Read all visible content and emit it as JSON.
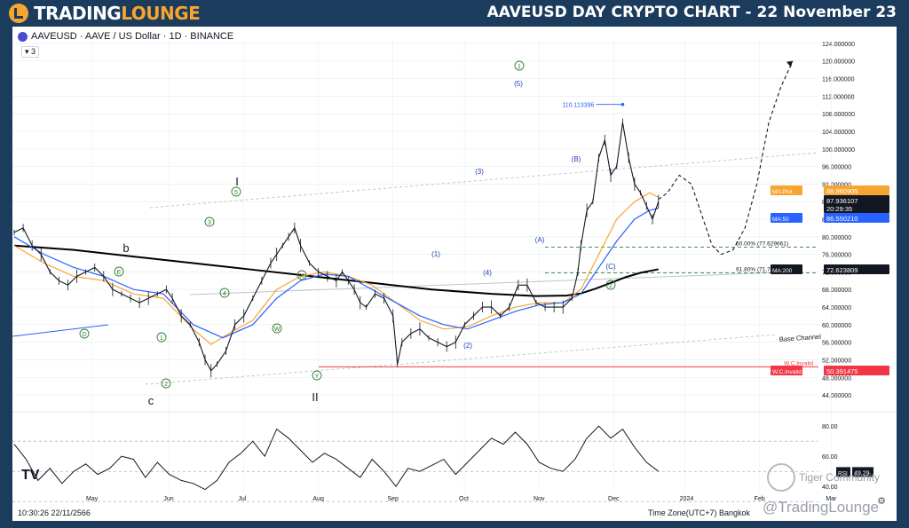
{
  "header": {
    "brand_part1": "TRADING",
    "brand_part2": "LOUNGE",
    "title": "AAVEUSD DAY CRYPTO CHART - 22 November 23"
  },
  "chart_header": {
    "symbol_line": "AAVEUSD · AAVE / US Dollar · 1D · BINANCE",
    "collapsed_count": "3"
  },
  "footer": {
    "datetime": "10:30:26 22/11/2566",
    "timezone": "Time Zone(UTC+7) Bangkok",
    "tv_logo": "TV",
    "community": "Tiger Community",
    "handle": "@TradingLounge"
  },
  "colors": {
    "price": "#131722",
    "ma50": "#2962ff",
    "maplot": "#f7a531",
    "ma200": "#000000",
    "invalid": "#f23645",
    "wave_green": "#2e7d32",
    "wave_blue": "#1e3fae",
    "grid": "#e9ebef",
    "brand_bg": "#1b3c5c",
    "brand_accent": "#f7a531"
  },
  "chart_data": {
    "type": "line",
    "title": "AAVEUSD · AAVE / US Dollar · 1D · BINANCE",
    "x_ticks": [
      "May",
      "Jun",
      "Jul",
      "Aug",
      "Sep",
      "Oct",
      "Nov",
      "Dec",
      "2024",
      "Feb",
      "Mar"
    ],
    "y_ticks": [
      "124.000000",
      "120.000000",
      "116.000000",
      "112.000000",
      "108.000000",
      "104.000000",
      "100.000000",
      "96.000000",
      "92.000000",
      "88.000000",
      "84.000000",
      "80.000000",
      "76.000000",
      "72.000000",
      "68.000000",
      "64.000000",
      "60.000000",
      "56.000000",
      "52.000000",
      "48.000000",
      "44.000000"
    ],
    "ylim": [
      42.8,
      125.2
    ],
    "price_points": [
      [
        0,
        81
      ],
      [
        3,
        82
      ],
      [
        6,
        78
      ],
      [
        9,
        76
      ],
      [
        12,
        72
      ],
      [
        15,
        70
      ],
      [
        18,
        69
      ],
      [
        21,
        71
      ],
      [
        24,
        72
      ],
      [
        27,
        73
      ],
      [
        30,
        71
      ],
      [
        33,
        68
      ],
      [
        36,
        67
      ],
      [
        39,
        66
      ],
      [
        42,
        65
      ],
      [
        45,
        66
      ],
      [
        48,
        67
      ],
      [
        51,
        68
      ],
      [
        53,
        66
      ],
      [
        56,
        62
      ],
      [
        59,
        60
      ],
      [
        62,
        56
      ],
      [
        64,
        52
      ],
      [
        66,
        49.5
      ],
      [
        68,
        51
      ],
      [
        71,
        54
      ],
      [
        74,
        60
      ],
      [
        77,
        62
      ],
      [
        80,
        66
      ],
      [
        83,
        70
      ],
      [
        86,
        74
      ],
      [
        88,
        76
      ],
      [
        90,
        78
      ],
      [
        92,
        80
      ],
      [
        94,
        82
      ],
      [
        96,
        78
      ],
      [
        99,
        74
      ],
      [
        102,
        72
      ],
      [
        105,
        71
      ],
      [
        108,
        70
      ],
      [
        110,
        72
      ],
      [
        112,
        70
      ],
      [
        114,
        68
      ],
      [
        116,
        65
      ],
      [
        118,
        64
      ],
      [
        121,
        67
      ],
      [
        124,
        66
      ],
      [
        127,
        62
      ],
      [
        128.5,
        51
      ],
      [
        130,
        56
      ],
      [
        133,
        58
      ],
      [
        136,
        59
      ],
      [
        139,
        57
      ],
      [
        142,
        56
      ],
      [
        145,
        55
      ],
      [
        148,
        56
      ],
      [
        151,
        60
      ],
      [
        154,
        62
      ],
      [
        157,
        64
      ],
      [
        160,
        64
      ],
      [
        163,
        62
      ],
      [
        166,
        64
      ],
      [
        169,
        69
      ],
      [
        172,
        69
      ],
      [
        175,
        65
      ],
      [
        178,
        64
      ],
      [
        181,
        64
      ],
      [
        184,
        64
      ],
      [
        187,
        66
      ],
      [
        189,
        72
      ],
      [
        190,
        78
      ],
      [
        192,
        86
      ],
      [
        194,
        88
      ],
      [
        196,
        98
      ],
      [
        198,
        102
      ],
      [
        200,
        94
      ],
      [
        202,
        96
      ],
      [
        204,
        106
      ],
      [
        206,
        98
      ],
      [
        208,
        92
      ],
      [
        210,
        90
      ],
      [
        212,
        87
      ],
      [
        214,
        84
      ],
      [
        216,
        88
      ]
    ],
    "ma_plot_points": [
      [
        0,
        78
      ],
      [
        10,
        74
      ],
      [
        20,
        71
      ],
      [
        30,
        70
      ],
      [
        40,
        67
      ],
      [
        50,
        66
      ],
      [
        60,
        59
      ],
      [
        66,
        55.5
      ],
      [
        72,
        58
      ],
      [
        80,
        61
      ],
      [
        88,
        68
      ],
      [
        96,
        71
      ],
      [
        104,
        72
      ],
      [
        112,
        71
      ],
      [
        120,
        69
      ],
      [
        128,
        65
      ],
      [
        136,
        61
      ],
      [
        144,
        59
      ],
      [
        152,
        59.5
      ],
      [
        160,
        62
      ],
      [
        168,
        64
      ],
      [
        176,
        65
      ],
      [
        184,
        65
      ],
      [
        190,
        68
      ],
      [
        196,
        76
      ],
      [
        202,
        84
      ],
      [
        208,
        88
      ],
      [
        213,
        90
      ],
      [
        216,
        89
      ]
    ],
    "ma50_points": [
      [
        0,
        80
      ],
      [
        10,
        76
      ],
      [
        20,
        73
      ],
      [
        30,
        71
      ],
      [
        40,
        68
      ],
      [
        50,
        67
      ],
      [
        60,
        60
      ],
      [
        70,
        57
      ],
      [
        80,
        60
      ],
      [
        88,
        66
      ],
      [
        96,
        70
      ],
      [
        104,
        71.5
      ],
      [
        112,
        71
      ],
      [
        120,
        68
      ],
      [
        128,
        65
      ],
      [
        136,
        62
      ],
      [
        144,
        60
      ],
      [
        152,
        59
      ],
      [
        160,
        61
      ],
      [
        168,
        63
      ],
      [
        176,
        64.5
      ],
      [
        184,
        65
      ],
      [
        190,
        67
      ],
      [
        196,
        73
      ],
      [
        202,
        79
      ],
      [
        208,
        84
      ],
      [
        213,
        86
      ],
      [
        216,
        86.5
      ]
    ],
    "ma200_points": [
      [
        0,
        78
      ],
      [
        20,
        77
      ],
      [
        40,
        75.5
      ],
      [
        60,
        74
      ],
      [
        80,
        72.5
      ],
      [
        100,
        71
      ],
      [
        120,
        69.5
      ],
      [
        140,
        68
      ],
      [
        160,
        67
      ],
      [
        175,
        66.5
      ],
      [
        185,
        66.6
      ],
      [
        190,
        67.1
      ],
      [
        195,
        68.2
      ],
      [
        200,
        69.5
      ],
      [
        205,
        70.8
      ],
      [
        210,
        71.8
      ],
      [
        216,
        72.6
      ]
    ],
    "projection_points": [
      [
        216,
        88.5
      ],
      [
        219,
        90
      ],
      [
        223,
        94
      ],
      [
        227,
        92
      ],
      [
        231,
        84
      ],
      [
        234,
        78
      ],
      [
        237,
        76
      ],
      [
        241,
        77
      ],
      [
        245,
        82
      ],
      [
        249,
        92
      ],
      [
        253,
        106
      ],
      [
        257,
        114
      ],
      [
        261,
        120
      ]
    ],
    "price_labels": [
      {
        "label": "MA:Plot",
        "value": "88.960905"
      },
      {
        "label": "",
        "value": "87.936107"
      },
      {
        "label": "",
        "value": "20:29:35"
      },
      {
        "label": "MA:50",
        "value": "86.550210"
      },
      {
        "label": "MA:200",
        "value": "72.623809"
      },
      {
        "label": "W.C.Invalid",
        "value": "50.391475"
      }
    ],
    "levels": [
      {
        "label": "50.00% (77.629661)",
        "value": 77.629661
      },
      {
        "label": "61.80% (71.777936)",
        "value": 71.777936
      },
      {
        "label": "W.C.Invalid",
        "value": 50.391475
      }
    ],
    "peak_annotation": {
      "label": "110.113396",
      "value": 110.113396
    },
    "channel_labels": [
      "Base Channel"
    ],
    "wave_labels": [
      "b",
      "c",
      "I",
      "II",
      "(1)",
      "(2)",
      "(3)",
      "(4)",
      "(5)",
      "(A)",
      "(B)",
      "(C)",
      "D",
      "E",
      "W",
      "X",
      "Y",
      "1",
      "2",
      "3",
      "4",
      "5",
      "1",
      "2"
    ],
    "rsi": {
      "ylim": [
        36,
        86
      ],
      "y_ticks": [
        "80.00",
        "60.00",
        "40.00"
      ],
      "current_label": "RSI",
      "current_value": "49.29",
      "points": [
        [
          0,
          68
        ],
        [
          4,
          58
        ],
        [
          8,
          44
        ],
        [
          12,
          52
        ],
        [
          16,
          42
        ],
        [
          20,
          50
        ],
        [
          24,
          55
        ],
        [
          28,
          48
        ],
        [
          32,
          52
        ],
        [
          36,
          60
        ],
        [
          40,
          58
        ],
        [
          44,
          46
        ],
        [
          48,
          56
        ],
        [
          52,
          48
        ],
        [
          56,
          44
        ],
        [
          60,
          42
        ],
        [
          64,
          38
        ],
        [
          68,
          44
        ],
        [
          72,
          56
        ],
        [
          76,
          62
        ],
        [
          80,
          70
        ],
        [
          84,
          60
        ],
        [
          88,
          78
        ],
        [
          92,
          72
        ],
        [
          96,
          64
        ],
        [
          100,
          56
        ],
        [
          104,
          62
        ],
        [
          108,
          58
        ],
        [
          112,
          52
        ],
        [
          116,
          46
        ],
        [
          120,
          58
        ],
        [
          124,
          50
        ],
        [
          128,
          40
        ],
        [
          132,
          52
        ],
        [
          136,
          50
        ],
        [
          140,
          54
        ],
        [
          144,
          58
        ],
        [
          148,
          48
        ],
        [
          152,
          56
        ],
        [
          156,
          64
        ],
        [
          160,
          72
        ],
        [
          164,
          68
        ],
        [
          168,
          76
        ],
        [
          172,
          68
        ],
        [
          176,
          56
        ],
        [
          180,
          52
        ],
        [
          184,
          50
        ],
        [
          188,
          58
        ],
        [
          192,
          72
        ],
        [
          196,
          80
        ],
        [
          200,
          72
        ],
        [
          204,
          78
        ],
        [
          208,
          66
        ],
        [
          212,
          56
        ],
        [
          216,
          50
        ]
      ]
    }
  }
}
